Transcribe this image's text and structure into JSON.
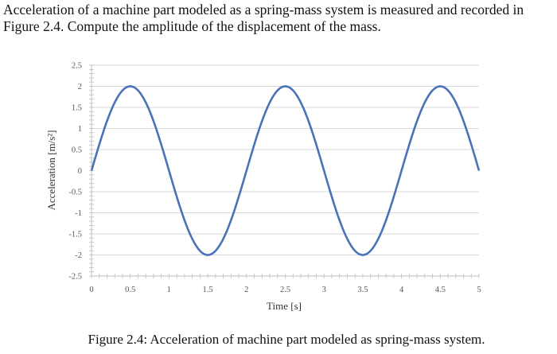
{
  "problem_text": "Acceleration of a machine part modeled as a spring-mass system is measured and recorded in Figure 2.4. Compute the amplitude of the displacement of the mass.",
  "caption": "Figure 2.4: Acceleration of machine part modeled as spring-mass system.",
  "chart_data": {
    "type": "line",
    "title": "",
    "xlabel": "Time [s]",
    "ylabel": "Acceleration [m/s²]",
    "xlim": [
      0,
      5
    ],
    "ylim": [
      -2.5,
      2.5
    ],
    "x_ticks": [
      "0",
      "0.5",
      "1",
      "1.5",
      "2",
      "2.5",
      "3",
      "3.5",
      "4",
      "4.5",
      "5"
    ],
    "y_ticks": [
      "2.5",
      "2",
      "1.5",
      "1",
      "0.5",
      "0",
      "-0.5",
      "-1",
      "-1.5",
      "-2",
      "-2.5"
    ],
    "grid": "horizontal",
    "series": [
      {
        "color": "#4a72b8",
        "function": "2*sin(pi*t)",
        "x": [
          0,
          0.25,
          0.5,
          0.75,
          1,
          1.25,
          1.5,
          1.75,
          2,
          2.25,
          2.5,
          2.75,
          3,
          3.25,
          3.5,
          3.75,
          4,
          4.25,
          4.5,
          4.75,
          5
        ],
        "values": [
          0,
          1.414,
          2,
          1.414,
          0,
          -1.414,
          -2,
          -1.414,
          0,
          1.414,
          2,
          1.414,
          0,
          -1.414,
          -2,
          -1.414,
          0,
          1.414,
          2,
          1.414,
          0
        ]
      }
    ]
  }
}
